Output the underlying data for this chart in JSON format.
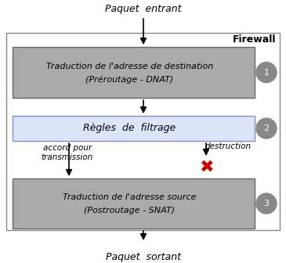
{
  "title": "Firewall",
  "box1_text1": "Traduction de l'adresse de destination",
  "box1_text2": "(Préroutage - DNAT)",
  "box1_color": "#aaaaaa",
  "box1_num": "1",
  "box2_text": "Règles  de  filtrage",
  "box2_color": "#dce6f8",
  "box2_num": "2",
  "box3_text1": "Traduction de l'adresse source",
  "box3_text2": "(Postroutage - SNAT)",
  "box3_color": "#aaaaaa",
  "box3_num": "3",
  "label_top": "Paquet  entrant",
  "label_bottom": "Paquet  sortant",
  "label_left": "accord pour\ntransmission",
  "label_right": "destruction",
  "outer_border_color": "#888888",
  "arrow_color": "#000000",
  "num_circle_color": "#888888",
  "num_text_color": "#ffffff",
  "cross_color": "#cc0000",
  "fig_w": 3.65,
  "fig_h": 3.36,
  "dpi": 100
}
